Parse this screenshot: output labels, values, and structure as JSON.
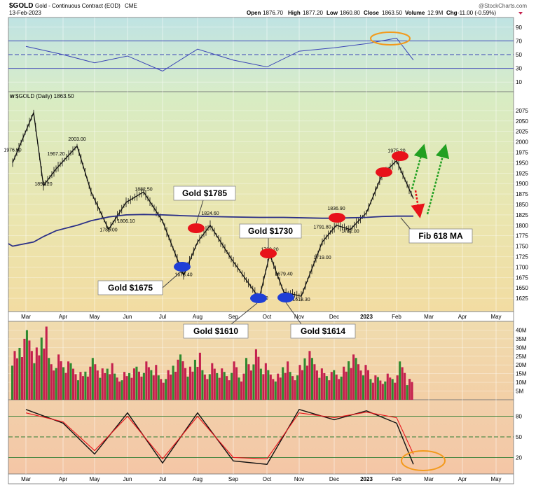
{
  "header": {
    "symbol": "$GOLD",
    "description": "Gold - Continuous Contract (EOD)",
    "exchange": "CME",
    "date": "13-Feb-2023",
    "watermark": "@StockCharts.com",
    "quote": {
      "open_label": "Open",
      "open": "1876.70",
      "high_label": "High",
      "high": "1877.20",
      "low_label": "Low",
      "low": "1860.80",
      "close_label": "Close",
      "close": "1863.50",
      "volume_label": "Volume",
      "volume": "12.9M",
      "chg_label": "Chg",
      "chg": "-11.00 (-0.59%)"
    }
  },
  "months": [
    "Mar",
    "Apr",
    "May",
    "Jun",
    "Jul",
    "Aug",
    "Sep",
    "Oct",
    "Nov",
    "Dec",
    "2023",
    "Feb",
    "Mar",
    "Apr",
    "May"
  ],
  "colors": {
    "rsi_bg_top": "#bfe3e3",
    "rsi_bg_bottom": "#d8ecc9",
    "price_bg_top": "#d7ecc4",
    "price_bg_bottom": "#f2e0a6",
    "vol_bg_top": "#f0dcae",
    "vol_bg_bottom": "#f3cfa6",
    "stoch_bg_top": "#f2d0aa",
    "stoch_bg_bottom": "#f4c6a6",
    "line_blue": "#3b45b6",
    "ma_navy": "#2a2f87",
    "up_green": "#2f8a2f",
    "down_red": "#c4214e",
    "annot_red": "#e8121a",
    "annot_blue": "#1f3fd6",
    "orange": "#f39a1c"
  },
  "chart_data": [
    {
      "type": "line",
      "panel": "rsi",
      "title": "",
      "ylim": [
        0,
        100
      ],
      "y_ticks": [
        10,
        30,
        50,
        70,
        90
      ],
      "levels": [
        30,
        50,
        70
      ],
      "x": [
        "Mar",
        "Apr",
        "May",
        "Jun",
        "Jul",
        "Aug",
        "Sep",
        "Oct",
        "Nov",
        "Dec",
        "2023",
        "Feb",
        "Feb-13"
      ],
      "values": [
        62,
        50,
        38,
        48,
        26,
        58,
        42,
        32,
        55,
        60,
        66,
        74,
        42
      ]
    },
    {
      "type": "line",
      "panel": "price",
      "title": "$GOLD (Daily) 1863.50",
      "ylim": [
        1600,
        2100
      ],
      "y_ticks": [
        1625,
        1650,
        1675,
        1700,
        1725,
        1750,
        1775,
        1800,
        1825,
        1850,
        1875,
        1900,
        1925,
        1950,
        1975,
        2000,
        2025,
        2050,
        2075
      ],
      "x": [
        "Mar-1",
        "Mar-8",
        "Mar-20",
        "Apr-1",
        "Apr-18",
        "May-1",
        "May-16",
        "Jun-1",
        "Jun-14",
        "Jul-1",
        "Jul-21",
        "Aug-1",
        "Aug-17",
        "Sep-1",
        "Sep-28",
        "Oct-5",
        "Oct-20",
        "Nov-1",
        "Nov-15",
        "Dec-1",
        "Dec-15",
        "Jan-1",
        "Jan-20",
        "Feb-1",
        "Feb-13"
      ],
      "values": [
        1950,
        2070,
        1895,
        1935,
        1990,
        1880,
        1790,
        1855,
        1880,
        1810,
        1680,
        1760,
        1800,
        1720,
        1625,
        1730,
        1640,
        1630,
        1760,
        1800,
        1790,
        1830,
        1920,
        1955,
        1864
      ],
      "ma_label": "Fib 618 MA",
      "ma_values": [
        1750,
        1760,
        1773,
        1787,
        1800,
        1811,
        1820,
        1825,
        1826,
        1825,
        1823,
        1822,
        1821,
        1820,
        1819,
        1819,
        1819,
        1818,
        1817,
        1817,
        1818,
        1819,
        1821,
        1822,
        1822
      ],
      "data_labels": [
        {
          "text": "1976.50",
          "x": "Mar-1",
          "y": 1976.5
        },
        {
          "text": "1895.20",
          "x": "Mar-20",
          "y": 1895.2
        },
        {
          "text": "1967.20",
          "x": "Apr-1",
          "y": 1967.2
        },
        {
          "text": "2003.00",
          "x": "Apr-18",
          "y": 2003.0
        },
        {
          "text": "1785.00",
          "x": "May-16",
          "y": 1785.0
        },
        {
          "text": "1882.50",
          "x": "Jun-14",
          "y": 1882.5
        },
        {
          "text": "1806.10",
          "x": "Jun-1",
          "y": 1806.1
        },
        {
          "text": "1678.40",
          "x": "Jul-21",
          "y": 1678.4
        },
        {
          "text": "1824.60",
          "x": "Aug-17",
          "y": 1824.6
        },
        {
          "text": "1738.20",
          "x": "Oct-5",
          "y": 1738.2
        },
        {
          "text": "1622.20",
          "x": "Sep-28",
          "y": 1622.2
        },
        {
          "text": "1679.40",
          "x": "Oct-20",
          "y": 1679.4
        },
        {
          "text": "1618.30",
          "x": "Nov-1",
          "y": 1618.3
        },
        {
          "text": "1719.00",
          "x": "Nov-15",
          "y": 1719.0
        },
        {
          "text": "1791.80",
          "x": "Nov-15",
          "y": 1791.8
        },
        {
          "text": "1836.90",
          "x": "Dec-1",
          "y": 1836.9
        },
        {
          "text": "1782.00",
          "x": "Dec-15",
          "y": 1782.0
        },
        {
          "text": "1975.20",
          "x": "Feb-1",
          "y": 1975.2
        }
      ],
      "annotations": [
        {
          "text": "Gold $1785"
        },
        {
          "text": "Gold $1730"
        },
        {
          "text": "Gold $1675"
        },
        {
          "text": "Gold $1610"
        },
        {
          "text": "Gold $1614"
        }
      ]
    },
    {
      "type": "bar",
      "panel": "volume",
      "title": "",
      "ylim": [
        0,
        45
      ],
      "y_ticks": [
        "5M",
        "10M",
        "15M",
        "20M",
        "25M",
        "30M",
        "35M",
        "40M"
      ],
      "y_tick_values": [
        5,
        10,
        15,
        20,
        25,
        30,
        35,
        40
      ],
      "values_millions": [
        28,
        35,
        40,
        30,
        42,
        24,
        26,
        22,
        21,
        16,
        19,
        24,
        18,
        21,
        15,
        16,
        18,
        19,
        22,
        20,
        14,
        17,
        23,
        26,
        19,
        27,
        17,
        21,
        18,
        16,
        22,
        15,
        24,
        29,
        21,
        17,
        15,
        22,
        16,
        20,
        28,
        24,
        18,
        16,
        17,
        19,
        26,
        24,
        20,
        14,
        13,
        15,
        14,
        22,
        12
      ]
    },
    {
      "type": "line",
      "panel": "stochastic",
      "title": "",
      "ylim": [
        0,
        100
      ],
      "y_ticks": [
        20,
        50,
        80
      ],
      "levels": [
        20,
        50,
        80
      ],
      "x": [
        "Mar",
        "Apr",
        "May",
        "Jun",
        "Jul",
        "Aug",
        "Sep",
        "Oct",
        "Nov",
        "Dec",
        "2023",
        "Feb",
        "Feb-13"
      ],
      "series": [
        {
          "values": [
            90,
            70,
            25,
            85,
            12,
            85,
            15,
            10,
            90,
            75,
            88,
            70,
            10
          ]
        },
        {
          "values": [
            85,
            72,
            30,
            80,
            18,
            80,
            20,
            18,
            85,
            78,
            86,
            78,
            25
          ]
        }
      ]
    }
  ]
}
